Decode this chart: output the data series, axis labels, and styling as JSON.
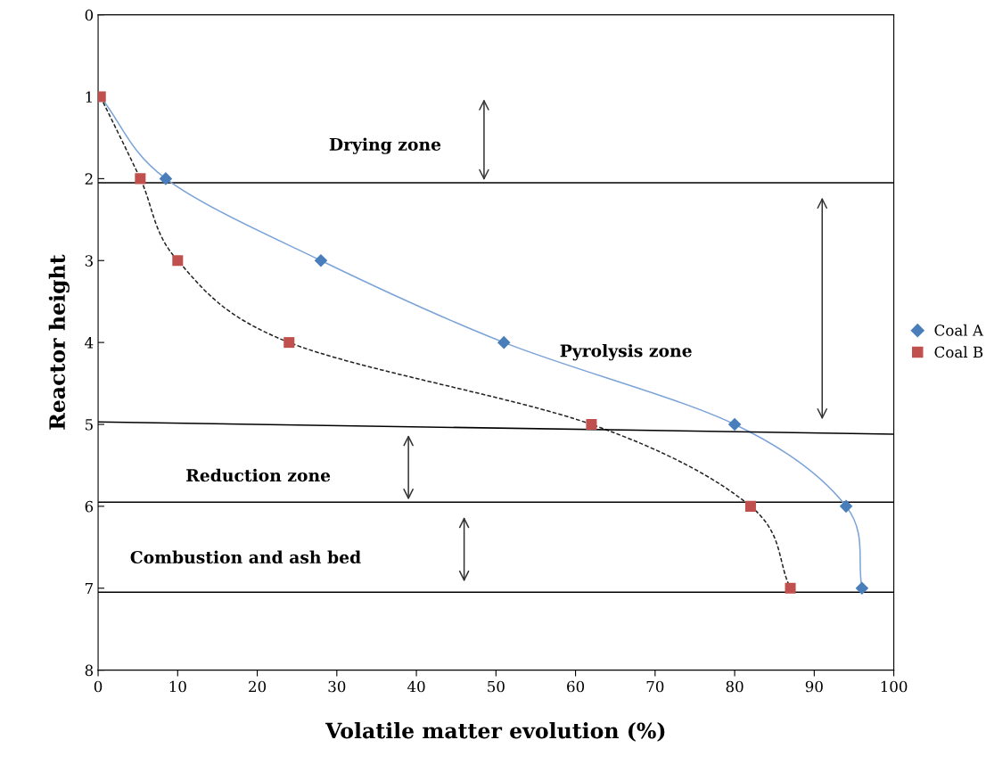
{
  "chart_data": {
    "type": "scatter",
    "xlabel": "Volatile matter evolution (%)",
    "ylabel": "Reactor height",
    "xlim": [
      0,
      100
    ],
    "xticks": [
      0,
      10,
      20,
      30,
      40,
      50,
      60,
      70,
      80,
      90,
      100
    ],
    "ylim": [
      8,
      0
    ],
    "yticks": [
      0,
      1,
      2,
      3,
      4,
      5,
      6,
      7,
      8
    ],
    "grid": false,
    "legend": "right",
    "series": [
      {
        "type": "line",
        "color": "#7ba3d8",
        "line_style": "solid",
        "x": [
          0.3,
          8.5,
          28,
          51,
          80,
          94,
          96
        ],
        "values": [
          1,
          2,
          3,
          4,
          5,
          6,
          7
        ]
      },
      {
        "type": "line",
        "color": "#222222",
        "line_style": "dashed",
        "x": [
          0.3,
          5.3,
          10,
          24,
          62,
          82,
          87
        ],
        "values": [
          1,
          2,
          3,
          4,
          5,
          6,
          7
        ]
      },
      {
        "type": "line",
        "color": "#000000",
        "line_style": "solid",
        "x": [
          0,
          100
        ],
        "values": [
          4.97,
          5.12
        ]
      },
      {
        "name": "Coal A",
        "color": "#4a7ebb",
        "marker": "diamond",
        "x": [
          8.5,
          28,
          51,
          80,
          94,
          96
        ],
        "values": [
          2,
          3,
          4,
          5,
          6,
          7
        ]
      },
      {
        "name": "Coal B",
        "color": "#c0504d",
        "marker": "square",
        "x": [
          0.3,
          5.3,
          10,
          24,
          62,
          82,
          87
        ],
        "values": [
          1,
          2,
          3,
          4,
          5,
          6,
          7
        ]
      }
    ],
    "ref_lines": [
      {
        "axis": "y",
        "value": 2.05,
        "color": "#000000"
      },
      {
        "axis": "y",
        "value": 5.95,
        "color": "#000000"
      },
      {
        "axis": "y",
        "value": 7.05,
        "color": "#000000"
      }
    ],
    "annotations": [
      "Drying zone",
      "Pyrolysis zone",
      "Reduction zone",
      "Combustion and ash bed"
    ]
  }
}
